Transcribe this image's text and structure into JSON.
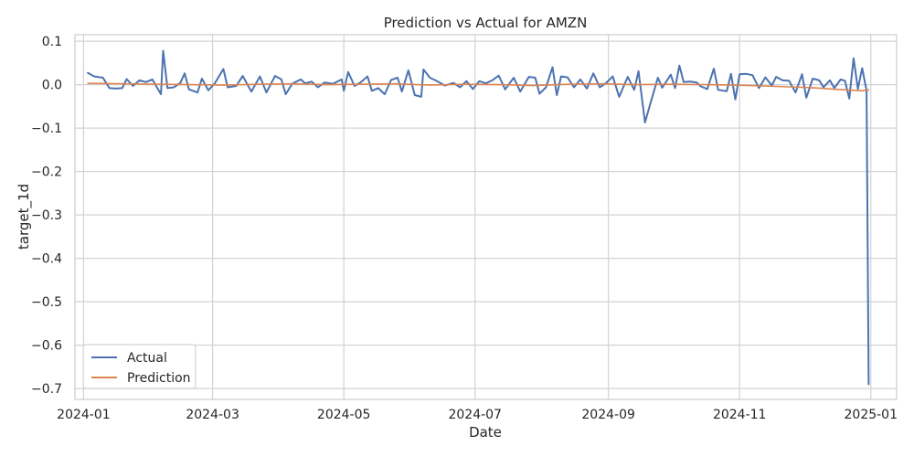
{
  "chart_data": {
    "type": "line",
    "title": "Prediction vs Actual for AMZN",
    "xlabel": "Date",
    "ylabel": "target_1d",
    "xlim": [
      "2023-12-28",
      "2025-01-13"
    ],
    "ylim": [
      -0.725,
      0.115
    ],
    "grid": true,
    "legend_position": "lower-left",
    "x_ticks": [
      "2024-01",
      "2024-03",
      "2024-05",
      "2024-07",
      "2024-09",
      "2024-11",
      "2025-01"
    ],
    "y_ticks": [
      0.1,
      0.0,
      -0.1,
      -0.2,
      -0.3,
      -0.4,
      -0.5,
      -0.6,
      -0.7
    ],
    "y_tick_labels": [
      "0.1",
      "0.0",
      "−0.1",
      "−0.2",
      "−0.3",
      "−0.4",
      "−0.5",
      "−0.6",
      "−0.7"
    ],
    "series": [
      {
        "name": "Actual",
        "color": "#4c72b0",
        "points": [
          [
            "2024-01-03",
            0.027
          ],
          [
            "2024-01-06",
            0.019
          ],
          [
            "2024-01-10",
            0.016
          ],
          [
            "2024-01-13",
            -0.008
          ],
          [
            "2024-01-16",
            -0.009
          ],
          [
            "2024-01-19",
            -0.008
          ],
          [
            "2024-01-21",
            0.013
          ],
          [
            "2024-01-24",
            -0.003
          ],
          [
            "2024-01-27",
            0.01
          ],
          [
            "2024-01-30",
            0.006
          ],
          [
            "2024-02-02",
            0.012
          ],
          [
            "2024-02-06",
            -0.022
          ],
          [
            "2024-02-07",
            0.078
          ],
          [
            "2024-02-09",
            -0.008
          ],
          [
            "2024-02-12",
            -0.006
          ],
          [
            "2024-02-15",
            0.004
          ],
          [
            "2024-02-17",
            0.026
          ],
          [
            "2024-02-19",
            -0.011
          ],
          [
            "2024-02-23",
            -0.018
          ],
          [
            "2024-02-25",
            0.014
          ],
          [
            "2024-02-28",
            -0.013
          ],
          [
            "2024-03-02",
            0.003
          ],
          [
            "2024-03-06",
            0.036
          ],
          [
            "2024-03-08",
            -0.006
          ],
          [
            "2024-03-12",
            -0.003
          ],
          [
            "2024-03-15",
            0.02
          ],
          [
            "2024-03-19",
            -0.016
          ],
          [
            "2024-03-23",
            0.019
          ],
          [
            "2024-03-26",
            -0.018
          ],
          [
            "2024-03-30",
            0.02
          ],
          [
            "2024-04-02",
            0.012
          ],
          [
            "2024-04-04",
            -0.022
          ],
          [
            "2024-04-07",
            0.002
          ],
          [
            "2024-04-11",
            0.012
          ],
          [
            "2024-04-13",
            0.003
          ],
          [
            "2024-04-16",
            0.007
          ],
          [
            "2024-04-19",
            -0.006
          ],
          [
            "2024-04-22",
            0.005
          ],
          [
            "2024-04-26",
            0.002
          ],
          [
            "2024-04-30",
            0.012
          ],
          [
            "2024-05-01",
            -0.014
          ],
          [
            "2024-05-03",
            0.029
          ],
          [
            "2024-05-06",
            -0.003
          ],
          [
            "2024-05-09",
            0.006
          ],
          [
            "2024-05-12",
            0.019
          ],
          [
            "2024-05-14",
            -0.014
          ],
          [
            "2024-05-17",
            -0.008
          ],
          [
            "2024-05-20",
            -0.022
          ],
          [
            "2024-05-23",
            0.011
          ],
          [
            "2024-05-26",
            0.016
          ],
          [
            "2024-05-28",
            -0.016
          ],
          [
            "2024-05-31",
            0.033
          ],
          [
            "2024-06-03",
            -0.024
          ],
          [
            "2024-06-06",
            -0.028
          ],
          [
            "2024-06-07",
            0.035
          ],
          [
            "2024-06-10",
            0.016
          ],
          [
            "2024-06-13",
            0.009
          ],
          [
            "2024-06-17",
            -0.002
          ],
          [
            "2024-06-21",
            0.004
          ],
          [
            "2024-06-24",
            -0.006
          ],
          [
            "2024-06-27",
            0.008
          ],
          [
            "2024-06-30",
            -0.01
          ],
          [
            "2024-07-03",
            0.008
          ],
          [
            "2024-07-06",
            0.003
          ],
          [
            "2024-07-09",
            0.01
          ],
          [
            "2024-07-12",
            0.021
          ],
          [
            "2024-07-15",
            -0.011
          ],
          [
            "2024-07-19",
            0.016
          ],
          [
            "2024-07-22",
            -0.016
          ],
          [
            "2024-07-26",
            0.018
          ],
          [
            "2024-07-29",
            0.016
          ],
          [
            "2024-07-31",
            -0.021
          ],
          [
            "2024-08-03",
            -0.006
          ],
          [
            "2024-08-06",
            0.04
          ],
          [
            "2024-08-08",
            -0.024
          ],
          [
            "2024-08-10",
            0.019
          ],
          [
            "2024-08-13",
            0.017
          ],
          [
            "2024-08-16",
            -0.006
          ],
          [
            "2024-08-19",
            0.012
          ],
          [
            "2024-08-22",
            -0.009
          ],
          [
            "2024-08-25",
            0.026
          ],
          [
            "2024-08-28",
            -0.006
          ],
          [
            "2024-08-31",
            0.004
          ],
          [
            "2024-09-03",
            0.019
          ],
          [
            "2024-09-06",
            -0.028
          ],
          [
            "2024-09-10",
            0.018
          ],
          [
            "2024-09-13",
            -0.012
          ],
          [
            "2024-09-15",
            0.031
          ],
          [
            "2024-09-18",
            -0.087
          ],
          [
            "2024-09-20",
            -0.052
          ],
          [
            "2024-09-24",
            0.016
          ],
          [
            "2024-09-26",
            -0.007
          ],
          [
            "2024-09-30",
            0.023
          ],
          [
            "2024-10-02",
            -0.008
          ],
          [
            "2024-10-04",
            0.044
          ],
          [
            "2024-10-06",
            0.006
          ],
          [
            "2024-10-09",
            0.007
          ],
          [
            "2024-10-12",
            0.005
          ],
          [
            "2024-10-14",
            -0.004
          ],
          [
            "2024-10-17",
            -0.01
          ],
          [
            "2024-10-20",
            0.037
          ],
          [
            "2024-10-22",
            -0.012
          ],
          [
            "2024-10-26",
            -0.015
          ],
          [
            "2024-10-28",
            0.025
          ],
          [
            "2024-10-30",
            -0.034
          ],
          [
            "2024-11-01",
            0.024
          ],
          [
            "2024-11-04",
            0.025
          ],
          [
            "2024-11-07",
            0.022
          ],
          [
            "2024-11-10",
            -0.008
          ],
          [
            "2024-11-13",
            0.017
          ],
          [
            "2024-11-16",
            -0.002
          ],
          [
            "2024-11-18",
            0.018
          ],
          [
            "2024-11-21",
            0.01
          ],
          [
            "2024-11-24",
            0.009
          ],
          [
            "2024-11-27",
            -0.018
          ],
          [
            "2024-11-30",
            0.024
          ],
          [
            "2024-12-02",
            -0.03
          ],
          [
            "2024-12-05",
            0.014
          ],
          [
            "2024-12-08",
            0.01
          ],
          [
            "2024-12-10",
            -0.006
          ],
          [
            "2024-12-13",
            0.01
          ],
          [
            "2024-12-15",
            -0.008
          ],
          [
            "2024-12-18",
            0.012
          ],
          [
            "2024-12-20",
            0.009
          ],
          [
            "2024-12-22",
            -0.032
          ],
          [
            "2024-12-24",
            0.061
          ],
          [
            "2024-12-26",
            -0.01
          ],
          [
            "2024-12-28",
            0.038
          ],
          [
            "2024-12-30",
            -0.014
          ],
          [
            "2024-12-31",
            -0.69
          ]
        ]
      },
      {
        "name": "Prediction",
        "color": "#dd8452",
        "points": [
          [
            "2024-01-03",
            0.003
          ],
          [
            "2024-01-20",
            0.002
          ],
          [
            "2024-02-05",
            0.001
          ],
          [
            "2024-02-20",
            0.0
          ],
          [
            "2024-03-06",
            -0.001
          ],
          [
            "2024-03-22",
            0.001
          ],
          [
            "2024-04-07",
            0.002
          ],
          [
            "2024-04-23",
            0.0
          ],
          [
            "2024-05-09",
            0.001
          ],
          [
            "2024-05-25",
            0.002
          ],
          [
            "2024-06-10",
            -0.001
          ],
          [
            "2024-06-26",
            0.001
          ],
          [
            "2024-07-12",
            0.0
          ],
          [
            "2024-07-28",
            -0.002
          ],
          [
            "2024-08-13",
            0.001
          ],
          [
            "2024-08-29",
            0.002
          ],
          [
            "2024-09-14",
            0.0
          ],
          [
            "2024-09-30",
            0.001
          ],
          [
            "2024-10-16",
            0.0
          ],
          [
            "2024-10-28",
            -0.001
          ],
          [
            "2024-11-06",
            -0.002
          ],
          [
            "2024-11-18",
            -0.004
          ],
          [
            "2024-11-30",
            -0.006
          ],
          [
            "2024-12-08",
            -0.008
          ],
          [
            "2024-12-14",
            -0.01
          ],
          [
            "2024-12-20",
            -0.012
          ],
          [
            "2024-12-24",
            -0.013
          ],
          [
            "2024-12-28",
            -0.014
          ],
          [
            "2024-12-31",
            -0.012
          ]
        ]
      }
    ]
  }
}
